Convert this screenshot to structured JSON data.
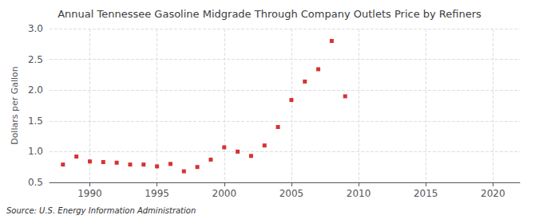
{
  "chart_data": {
    "type": "scatter",
    "title": "Annual Tennessee Gasoline Midgrade Through Company Outlets Price by Refiners",
    "ylabel": "Dollars per Gallon",
    "annotation": "Source: U.S. Energy Information Administration",
    "x": [
      1988,
      1989,
      1990,
      1991,
      1992,
      1993,
      1994,
      1995,
      1996,
      1997,
      1998,
      1999,
      2000,
      2001,
      2002,
      2003,
      2004,
      2005,
      2006,
      2007,
      2008,
      2009
    ],
    "values": [
      0.79,
      0.92,
      0.84,
      0.83,
      0.82,
      0.79,
      0.79,
      0.76,
      0.8,
      0.68,
      0.75,
      0.87,
      1.07,
      1.0,
      0.93,
      1.1,
      1.4,
      1.84,
      2.14,
      2.34,
      2.8,
      1.9
    ],
    "color": "#cc0000",
    "marker": "square",
    "xlim": [
      1987,
      2022
    ],
    "xticks": [
      1990,
      1995,
      2000,
      2005,
      2010,
      2015,
      2020
    ],
    "ylim": [
      0.5,
      3.0
    ],
    "yticks": [
      0.5,
      {
        "value": 1.0,
        "label": "1.0"
      },
      1.5,
      {
        "value": 2.0,
        "label": "2.0"
      },
      2.5,
      {
        "value": 3.0,
        "label": "3.0"
      }
    ],
    "grid": true
  }
}
